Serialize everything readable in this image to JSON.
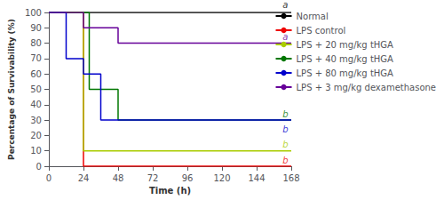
{
  "chart_data": {
    "type": "line",
    "xlabel": "Time (h)",
    "ylabel": "Percentage of Survivability (%)",
    "xlim": [
      0,
      168
    ],
    "ylim": [
      0,
      100
    ],
    "xticks": [
      0,
      24,
      48,
      72,
      96,
      120,
      144,
      168
    ],
    "yticks": [
      0,
      10,
      20,
      30,
      40,
      50,
      60,
      70,
      80,
      90,
      100
    ],
    "grid": false,
    "legend": "right",
    "series": [
      {
        "name": "Normal",
        "color": "#000000",
        "x": [
          0,
          168
        ],
        "values": [
          100,
          100
        ]
      },
      {
        "name": "LPS control",
        "color": "#ee0000",
        "x": [
          0,
          24,
          24,
          168
        ],
        "values": [
          100,
          100,
          0,
          0
        ]
      },
      {
        "name": "LPS + 20 mg/kg tHGA",
        "color": "#aacc00",
        "x": [
          0,
          24,
          24,
          168
        ],
        "values": [
          100,
          100,
          10,
          10
        ]
      },
      {
        "name": "LPS + 40 mg/kg tHGA",
        "color": "#007700",
        "x": [
          0,
          28,
          28,
          48,
          48,
          168
        ],
        "values": [
          100,
          100,
          50,
          50,
          30,
          30
        ]
      },
      {
        "name": "LPS + 80 mg/kg tHGA",
        "color": "#0000cc",
        "x": [
          0,
          12,
          12,
          24,
          24,
          36,
          36,
          168
        ],
        "values": [
          100,
          100,
          70,
          70,
          60,
          60,
          30,
          30
        ]
      },
      {
        "name": "LPS + 3 mg/kg dexamethasone",
        "color": "#660099",
        "x": [
          0,
          24,
          24,
          48,
          48,
          168
        ],
        "values": [
          100,
          100,
          90,
          90,
          80,
          80
        ]
      }
    ],
    "annotations": [
      {
        "text": "a",
        "x": 162,
        "y": 102,
        "color": "#000000"
      },
      {
        "text": "b",
        "x": 162,
        "y": 1,
        "color": "#ee0000"
      },
      {
        "text": "b",
        "x": 162,
        "y": 11,
        "color": "#aacc00"
      },
      {
        "text": "b",
        "x": 162,
        "y": 31,
        "color": "#007700"
      },
      {
        "text": "b",
        "x": 162,
        "y": 21,
        "color": "#0000cc"
      },
      {
        "text": "a",
        "x": 162,
        "y": 81,
        "color": "#660099"
      }
    ]
  }
}
